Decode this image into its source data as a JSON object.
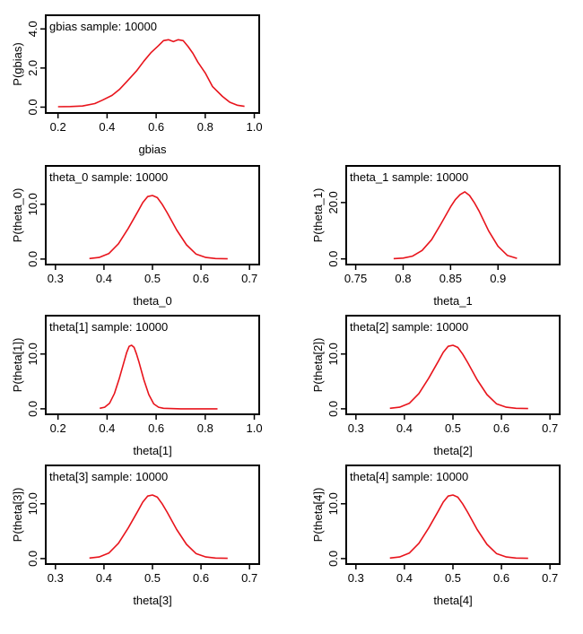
{
  "chart_data": [
    {
      "type": "line",
      "title": "gbias sample: 10000",
      "xlabel": "gbias",
      "ylabel": "P(gbias)",
      "xlim": [
        0.15,
        1.02
      ],
      "ylim": [
        -0.3,
        4.7
      ],
      "xticks": [
        "0.2",
        "0.4",
        "0.6",
        "0.8",
        "1.0"
      ],
      "yticks": [
        "0.0",
        "2.0",
        "4.0"
      ],
      "color": "#e8141c",
      "series": [
        {
          "x": [
            0.2,
            0.25,
            0.3,
            0.35,
            0.38,
            0.42,
            0.45,
            0.48,
            0.52,
            0.55,
            0.58,
            0.61,
            0.63,
            0.65,
            0.67,
            0.69,
            0.71,
            0.73,
            0.75,
            0.77,
            0.8,
            0.83,
            0.87,
            0.9,
            0.93,
            0.96
          ],
          "y": [
            0.02,
            0.03,
            0.06,
            0.18,
            0.35,
            0.6,
            0.9,
            1.3,
            1.85,
            2.35,
            2.8,
            3.15,
            3.4,
            3.45,
            3.35,
            3.45,
            3.4,
            3.1,
            2.75,
            2.3,
            1.75,
            1.05,
            0.55,
            0.25,
            0.1,
            0.04
          ]
        }
      ]
    },
    {
      "type": "line",
      "title": "theta_0 sample: 10000",
      "xlabel": "theta_0",
      "ylabel": "P(theta_0)",
      "xlim": [
        0.28,
        0.72
      ],
      "ylim": [
        -1.0,
        17.0
      ],
      "xticks": [
        "0.3",
        "0.4",
        "0.5",
        "0.6",
        "0.7"
      ],
      "yticks": [
        "0.0",
        "10.0"
      ],
      "color": "#e8141c",
      "series": [
        {
          "x": [
            0.37,
            0.39,
            0.41,
            0.43,
            0.45,
            0.47,
            0.48,
            0.49,
            0.5,
            0.51,
            0.52,
            0.53,
            0.55,
            0.57,
            0.59,
            0.61,
            0.63,
            0.655
          ],
          "y": [
            0.1,
            0.3,
            1.0,
            2.8,
            5.6,
            8.7,
            10.3,
            11.4,
            11.6,
            11.2,
            10.0,
            8.5,
            5.3,
            2.6,
            0.9,
            0.3,
            0.1,
            0.05
          ]
        }
      ]
    },
    {
      "type": "line",
      "title": "theta_1 sample: 10000",
      "xlabel": "theta_1",
      "ylabel": "P(theta_1)",
      "xlim": [
        0.74,
        0.965
      ],
      "ylim": [
        -2.0,
        33.0
      ],
      "xticks": [
        "0.75",
        "0.8",
        "0.85",
        "0.9"
      ],
      "yticks": [
        "0.0",
        "20.0"
      ],
      "color": "#e8141c",
      "series": [
        {
          "x": [
            0.79,
            0.8,
            0.81,
            0.82,
            0.83,
            0.84,
            0.85,
            0.855,
            0.86,
            0.865,
            0.87,
            0.875,
            0.88,
            0.89,
            0.9,
            0.91,
            0.92
          ],
          "y": [
            0.1,
            0.3,
            1.0,
            3.0,
            6.8,
            12.5,
            18.5,
            21.0,
            22.8,
            23.8,
            22.5,
            20.0,
            17.0,
            10.0,
            4.5,
            1.2,
            0.2
          ]
        }
      ]
    },
    {
      "type": "line",
      "title": "theta[1] sample: 10000",
      "xlabel": "theta[1]",
      "ylabel": "P(theta[1])",
      "xlim": [
        0.15,
        1.02
      ],
      "ylim": [
        -1.0,
        17.0
      ],
      "xticks": [
        "0.2",
        "0.4",
        "0.6",
        "0.8",
        "1.0"
      ],
      "yticks": [
        "0.0",
        "10.0"
      ],
      "color": "#e8141c",
      "series": [
        {
          "x": [
            0.37,
            0.39,
            0.41,
            0.43,
            0.45,
            0.47,
            0.48,
            0.49,
            0.5,
            0.51,
            0.52,
            0.53,
            0.55,
            0.57,
            0.59,
            0.61,
            0.63,
            0.7,
            0.75,
            0.8,
            0.85
          ],
          "y": [
            0.1,
            0.3,
            1.0,
            2.8,
            5.6,
            8.7,
            10.3,
            11.4,
            11.6,
            11.2,
            10.0,
            8.5,
            5.3,
            2.6,
            0.9,
            0.3,
            0.1,
            0.0,
            0.0,
            0.0,
            0.0
          ]
        }
      ]
    },
    {
      "type": "line",
      "title": "theta[2] sample: 10000",
      "xlabel": "theta[2]",
      "ylabel": "P(theta[2])",
      "xlim": [
        0.28,
        0.72
      ],
      "ylim": [
        -1.0,
        17.0
      ],
      "xticks": [
        "0.3",
        "0.4",
        "0.5",
        "0.6",
        "0.7"
      ],
      "yticks": [
        "0.0",
        "10.0"
      ],
      "color": "#e8141c",
      "series": [
        {
          "x": [
            0.37,
            0.39,
            0.41,
            0.43,
            0.45,
            0.47,
            0.48,
            0.49,
            0.5,
            0.51,
            0.52,
            0.53,
            0.55,
            0.57,
            0.59,
            0.61,
            0.63,
            0.655
          ],
          "y": [
            0.1,
            0.3,
            1.0,
            2.8,
            5.6,
            8.7,
            10.3,
            11.4,
            11.6,
            11.2,
            10.0,
            8.5,
            5.3,
            2.6,
            0.9,
            0.3,
            0.1,
            0.05
          ]
        }
      ]
    },
    {
      "type": "line",
      "title": "theta[3] sample: 10000",
      "xlabel": "theta[3]",
      "ylabel": "P(theta[3])",
      "xlim": [
        0.28,
        0.72
      ],
      "ylim": [
        -1.0,
        17.0
      ],
      "xticks": [
        "0.3",
        "0.4",
        "0.5",
        "0.6",
        "0.7"
      ],
      "yticks": [
        "0.0",
        "10.0"
      ],
      "color": "#e8141c",
      "series": [
        {
          "x": [
            0.37,
            0.39,
            0.41,
            0.43,
            0.45,
            0.47,
            0.48,
            0.49,
            0.5,
            0.51,
            0.52,
            0.53,
            0.55,
            0.57,
            0.59,
            0.61,
            0.63,
            0.655
          ],
          "y": [
            0.1,
            0.3,
            1.0,
            2.8,
            5.6,
            8.7,
            10.3,
            11.4,
            11.6,
            11.2,
            10.0,
            8.5,
            5.3,
            2.6,
            0.9,
            0.3,
            0.1,
            0.05
          ]
        }
      ]
    },
    {
      "type": "line",
      "title": "theta[4] sample: 10000",
      "xlabel": "theta[4]",
      "ylabel": "P(theta[4])",
      "xlim": [
        0.28,
        0.72
      ],
      "ylim": [
        -1.0,
        17.0
      ],
      "xticks": [
        "0.3",
        "0.4",
        "0.5",
        "0.6",
        "0.7"
      ],
      "yticks": [
        "0.0",
        "10.0"
      ],
      "color": "#e8141c",
      "series": [
        {
          "x": [
            0.37,
            0.39,
            0.41,
            0.43,
            0.45,
            0.47,
            0.48,
            0.49,
            0.5,
            0.51,
            0.52,
            0.53,
            0.55,
            0.57,
            0.59,
            0.61,
            0.63,
            0.655
          ],
          "y": [
            0.1,
            0.3,
            1.0,
            2.8,
            5.6,
            8.7,
            10.3,
            11.4,
            11.6,
            11.2,
            10.0,
            8.5,
            5.3,
            2.6,
            0.9,
            0.3,
            0.1,
            0.05
          ]
        }
      ]
    }
  ]
}
